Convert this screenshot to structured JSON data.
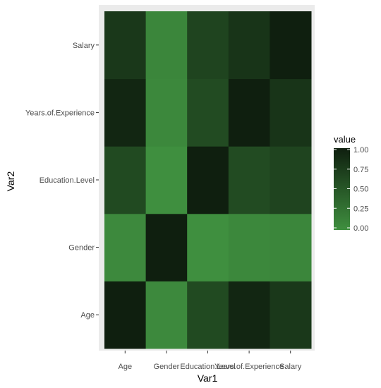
{
  "chart_data": {
    "type": "heatmap",
    "xlabel": "Var1",
    "ylabel": "Var2",
    "x_categories": [
      "Age",
      "Gender",
      "Education.Level",
      "Years.of.Experience",
      "Salary"
    ],
    "y_categories": [
      "Age",
      "Gender",
      "Education.Level",
      "Years.of.Experience",
      "Salary"
    ],
    "values": [
      [
        1.0,
        0.05,
        0.62,
        0.94,
        0.78
      ],
      [
        0.05,
        1.0,
        -0.02,
        0.06,
        0.08
      ],
      [
        0.62,
        -0.02,
        1.0,
        0.61,
        0.67
      ],
      [
        0.94,
        0.06,
        0.61,
        1.0,
        0.81
      ],
      [
        0.78,
        0.08,
        0.67,
        0.81,
        1.0
      ]
    ],
    "legend": {
      "title": "value",
      "position": "right",
      "breaks": [
        0.0,
        0.25,
        0.5,
        0.75,
        1.0
      ],
      "break_labels": [
        "0.00",
        "0.25",
        "0.50",
        "0.75",
        "1.00"
      ],
      "low_color": "#3f8f3f",
      "high_color": "#0f1f0f"
    },
    "panel_background": "#ebebeb"
  }
}
